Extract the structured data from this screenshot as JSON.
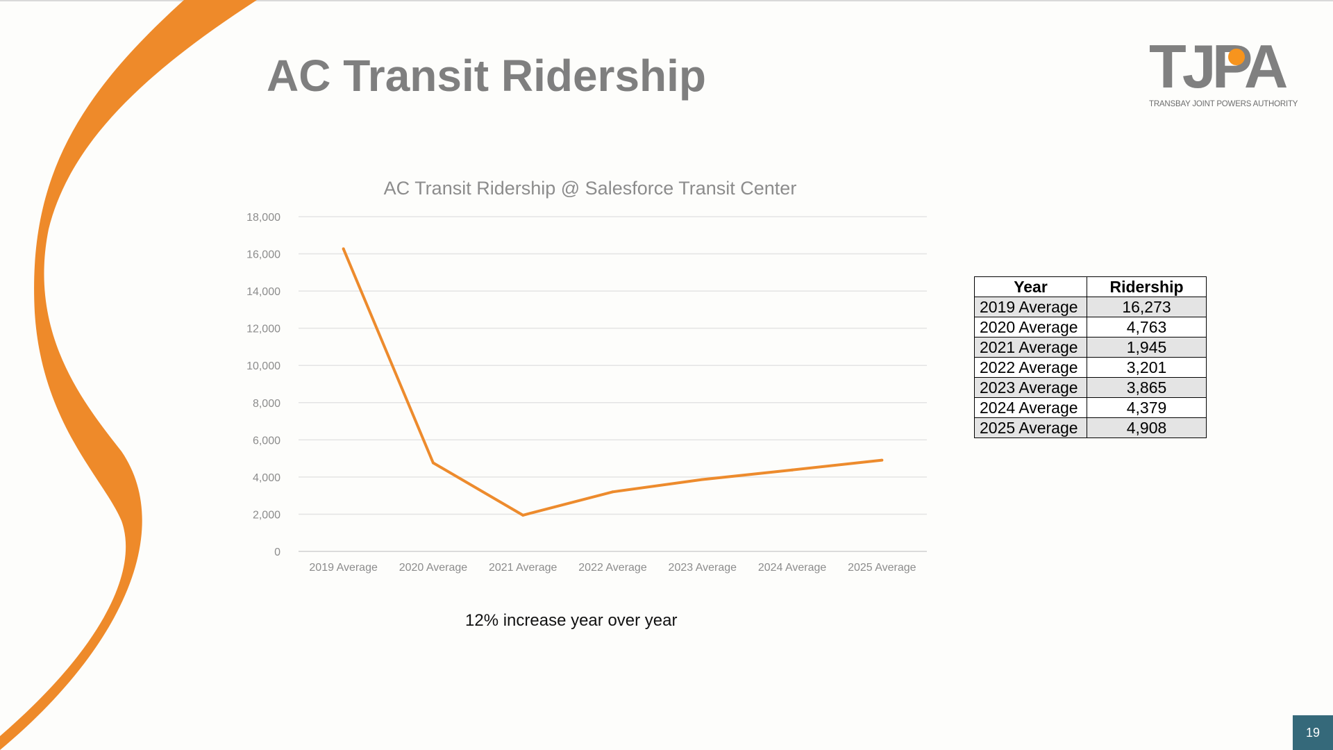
{
  "slide": {
    "title": "AC Transit Ridership",
    "note": "12% increase year over year",
    "page_number": "19"
  },
  "logo": {
    "letters": "TJPA",
    "subtitle": "TRANSBAY JOINT POWERS AUTHORITY",
    "accent_color": "#f7941d"
  },
  "colors": {
    "accent": "#ee8a2a",
    "series_line": "#ed8b2d",
    "page_box": "#35697a"
  },
  "chart_data": {
    "type": "line",
    "title": "AC Transit Ridership @ Salesforce Transit Center",
    "xlabel": "",
    "ylabel": "",
    "categories": [
      "2019 Average",
      "2020 Average",
      "2021 Average",
      "2022 Average",
      "2023 Average",
      "2024 Average",
      "2025 Average"
    ],
    "values": [
      16273,
      4763,
      1945,
      3201,
      3865,
      4379,
      4908
    ],
    "ylim": [
      0,
      18000
    ],
    "yticks": [
      "0",
      "2,000",
      "4,000",
      "6,000",
      "8,000",
      "10,000",
      "12,000",
      "14,000",
      "16,000",
      "18,000"
    ],
    "grid": true,
    "legend": "none"
  },
  "table": {
    "headers": [
      "Year",
      "Ridership"
    ],
    "rows": [
      [
        "2019 Average",
        "16,273"
      ],
      [
        "2020 Average",
        "4,763"
      ],
      [
        "2021 Average",
        "1,945"
      ],
      [
        "2022 Average",
        "3,201"
      ],
      [
        "2023 Average",
        "3,865"
      ],
      [
        "2024 Average",
        "4,379"
      ],
      [
        "2025 Average",
        "4,908"
      ]
    ]
  }
}
